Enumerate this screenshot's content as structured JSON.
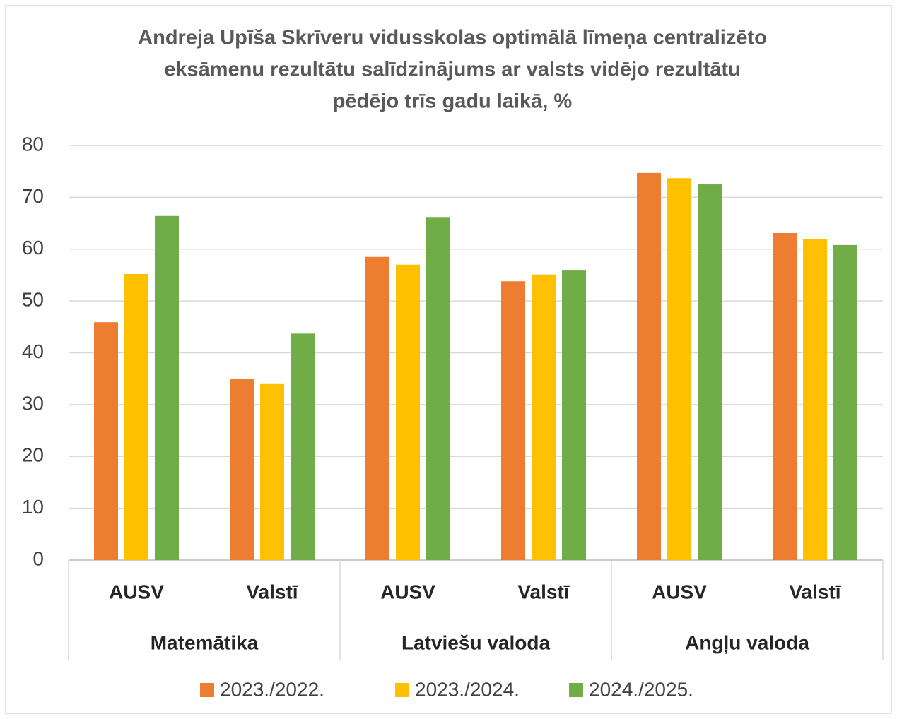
{
  "chart_data": {
    "type": "bar",
    "title": [
      "Andreja Upīša Skrīveru vidusskolas optimālā līmeņa centralizēto",
      "eksāmenu rezultātu salīdzinājums ar valsts vidējo rezultātu",
      "pēdējo trīs gadu laikā, %"
    ],
    "categories": [
      "AUSV",
      "Valstī",
      "AUSV",
      "Valstī",
      "AUSV",
      "Valstī"
    ],
    "groups": [
      "Matemātika",
      "Latviešu valoda",
      "Angļu valoda"
    ],
    "series": [
      {
        "name": "2023./2022.",
        "color": "#ed7d31",
        "values": [
          45.9,
          35.0,
          58.5,
          53.8,
          74.7,
          63.1
        ]
      },
      {
        "name": "2023./2024.",
        "color": "#ffc000",
        "values": [
          55.2,
          34.1,
          57.0,
          55.1,
          73.7,
          62.0
        ]
      },
      {
        "name": "2024./2025.",
        "color": "#70ad47",
        "values": [
          66.4,
          43.7,
          66.2,
          56.0,
          72.5,
          60.8
        ]
      }
    ],
    "ylim": [
      0,
      80
    ],
    "yticks": [
      0,
      10,
      20,
      30,
      40,
      50,
      60,
      70,
      80
    ],
    "grid": true,
    "legend": "bottom"
  }
}
